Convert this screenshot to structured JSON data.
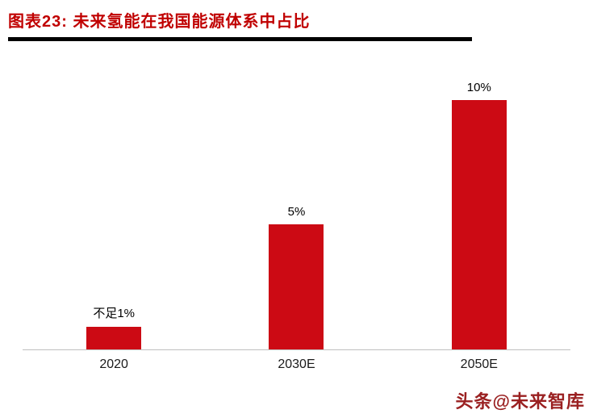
{
  "header": {
    "title": "图表23:  未来氢能在我国能源体系中占比",
    "title_color": "#c00000",
    "rule_color": "#000000"
  },
  "chart_data": {
    "type": "bar",
    "title": "未来氢能在我国能源体系中占比",
    "categories": [
      "2020",
      "2030E",
      "2050E"
    ],
    "values": [
      0.9,
      5,
      10
    ],
    "value_labels": [
      "不足1%",
      "5%",
      "10%"
    ],
    "xlabel": "",
    "ylabel": "",
    "ylim": [
      0,
      11
    ],
    "grid": false,
    "legend": "none",
    "bar_color": "#cc0a14",
    "axis_line_color": "#bfbfbf"
  },
  "watermark": {
    "text": "头条@未来智库",
    "color": "#9a2021"
  }
}
